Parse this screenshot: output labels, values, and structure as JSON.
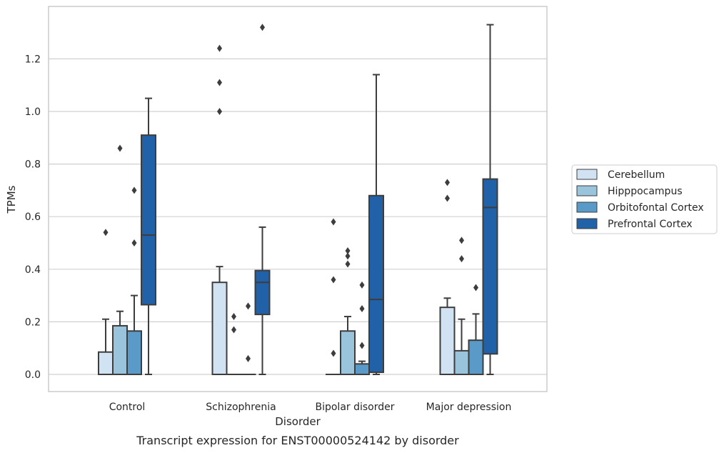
{
  "caption": "Transcript expression for ENST00000524142 by disorder",
  "chart_data": {
    "type": "box",
    "xlabel": "Disorder",
    "ylabel": "TPMs",
    "ylim": [
      -0.065,
      1.36
    ],
    "yticks": [
      0.0,
      0.2,
      0.4,
      0.6,
      0.8,
      1.0,
      1.2
    ],
    "ytick_labels": [
      "0.0",
      "0.2",
      "0.4",
      "0.6",
      "0.8",
      "1.0",
      "1.2"
    ],
    "grid": "horizontal",
    "legend_position": "right",
    "categories": [
      "Control",
      "Schizophrenia",
      "Bipolar disorder",
      "Major depression"
    ],
    "series": [
      {
        "name": "Cerebellum",
        "color": "#d1e2f2",
        "boxes": [
          {
            "q1": 0.0,
            "median": 0.0,
            "q3": 0.085,
            "whislo": 0.0,
            "whishi": 0.21,
            "fliers": [
              0.54
            ]
          },
          {
            "q1": 0.0,
            "median": 0.0,
            "q3": 0.35,
            "whislo": 0.0,
            "whishi": 0.41,
            "fliers": [
              1.0,
              1.11,
              1.24
            ]
          },
          {
            "q1": 0.0,
            "median": 0.0,
            "q3": 0.0,
            "whislo": 0.0,
            "whishi": 0.0,
            "fliers": [
              0.08,
              0.36,
              0.58
            ]
          },
          {
            "q1": 0.0,
            "median": 0.0,
            "q3": 0.255,
            "whislo": 0.0,
            "whishi": 0.29,
            "fliers": [
              0.67,
              0.73
            ]
          }
        ]
      },
      {
        "name": "Hipppocampus",
        "color": "#9ac3dc",
        "boxes": [
          {
            "q1": 0.0,
            "median": 0.0,
            "q3": 0.185,
            "whislo": 0.0,
            "whishi": 0.24,
            "fliers": [
              0.86
            ]
          },
          {
            "q1": 0.0,
            "median": 0.0,
            "q3": 0.0,
            "whislo": 0.0,
            "whishi": 0.0,
            "fliers": [
              0.17,
              0.22
            ]
          },
          {
            "q1": 0.0,
            "median": 0.0,
            "q3": 0.165,
            "whislo": 0.0,
            "whishi": 0.22,
            "fliers": [
              0.42,
              0.45,
              0.47
            ]
          },
          {
            "q1": 0.0,
            "median": 0.0,
            "q3": 0.09,
            "whislo": 0.0,
            "whishi": 0.21,
            "fliers": [
              0.44,
              0.51
            ]
          }
        ]
      },
      {
        "name": "Orbitofontal Cortex",
        "color": "#5a9ac8",
        "boxes": [
          {
            "q1": 0.0,
            "median": 0.0,
            "q3": 0.165,
            "whislo": 0.0,
            "whishi": 0.3,
            "fliers": [
              0.5,
              0.7
            ]
          },
          {
            "q1": 0.0,
            "median": 0.0,
            "q3": 0.0,
            "whislo": 0.0,
            "whishi": 0.0,
            "fliers": [
              0.06,
              0.26
            ]
          },
          {
            "q1": 0.0,
            "median": 0.0,
            "q3": 0.04,
            "whislo": 0.0,
            "whishi": 0.05,
            "fliers": [
              0.11,
              0.25,
              0.34
            ]
          },
          {
            "q1": 0.0,
            "median": 0.0,
            "q3": 0.13,
            "whislo": 0.0,
            "whishi": 0.23,
            "fliers": [
              0.33
            ]
          }
        ]
      },
      {
        "name": "Prefrontal Cortex",
        "color": "#2161a8",
        "boxes": [
          {
            "q1": 0.265,
            "median": 0.53,
            "q3": 0.91,
            "whislo": 0.0,
            "whishi": 1.05,
            "fliers": []
          },
          {
            "q1": 0.228,
            "median": 0.35,
            "q3": 0.395,
            "whislo": 0.0,
            "whishi": 0.56,
            "fliers": [
              1.32
            ]
          },
          {
            "q1": 0.008,
            "median": 0.285,
            "q3": 0.68,
            "whislo": 0.0,
            "whishi": 1.14,
            "fliers": []
          },
          {
            "q1": 0.078,
            "median": 0.635,
            "q3": 0.743,
            "whislo": 0.0,
            "whishi": 1.33,
            "fliers": []
          }
        ]
      }
    ]
  }
}
